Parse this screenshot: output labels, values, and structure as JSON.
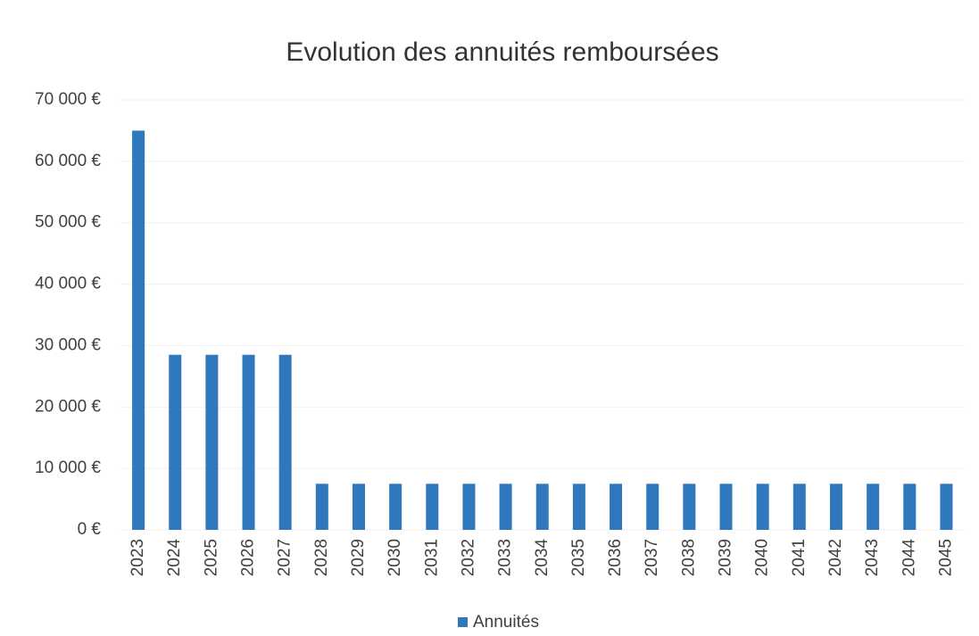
{
  "chart_data": {
    "type": "bar",
    "title": "Evolution des annuités remboursées",
    "categories": [
      "2023",
      "2024",
      "2025",
      "2026",
      "2027",
      "2028",
      "2029",
      "2030",
      "2031",
      "2032",
      "2033",
      "2034",
      "2035",
      "2036",
      "2037",
      "2038",
      "2039",
      "2040",
      "2041",
      "2042",
      "2043",
      "2044",
      "2045"
    ],
    "series": [
      {
        "name": "Annuités",
        "color": "#2f78bd",
        "values": [
          65000,
          28500,
          28500,
          28500,
          28500,
          7500,
          7500,
          7500,
          7500,
          7500,
          7500,
          7500,
          7500,
          7500,
          7500,
          7500,
          7500,
          7500,
          7500,
          7500,
          7500,
          7500,
          7500
        ]
      }
    ],
    "ylim": [
      0,
      70000
    ],
    "yticks": [
      {
        "value": 0,
        "label": "0 €"
      },
      {
        "value": 10000,
        "label": "10 000 €"
      },
      {
        "value": 20000,
        "label": "20 000 €"
      },
      {
        "value": 30000,
        "label": "30 000 €"
      },
      {
        "value": 40000,
        "label": "40 000 €"
      },
      {
        "value": 50000,
        "label": "50 000 €"
      },
      {
        "value": 60000,
        "label": "60 000 €"
      },
      {
        "value": 70000,
        "label": "70 000 €"
      }
    ],
    "grid": true,
    "legend": "bottom"
  }
}
